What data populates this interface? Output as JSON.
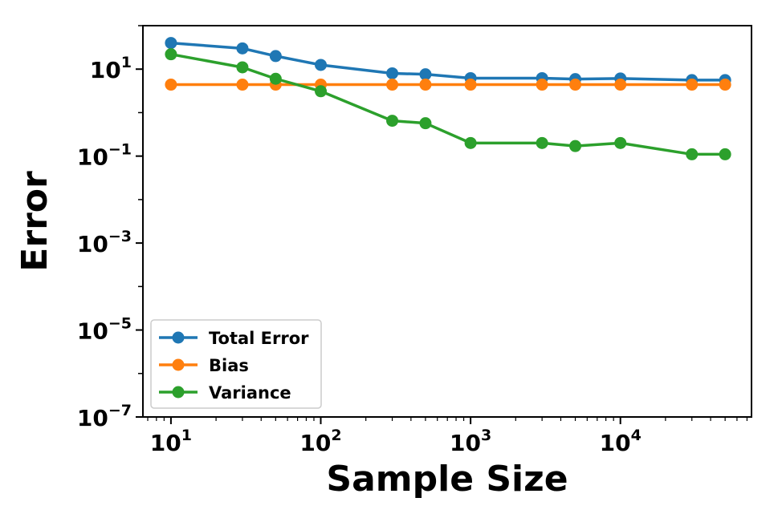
{
  "chart_data": {
    "type": "line",
    "xscale": "log",
    "yscale": "log",
    "xlabel": "Sample Size",
    "ylabel": "Error",
    "xlim": [
      6.5,
      75000
    ],
    "ylim": [
      1e-07,
      100
    ],
    "x_ticks": [
      {
        "value": 10,
        "base": "10",
        "exp": "1"
      },
      {
        "value": 100,
        "base": "10",
        "exp": "2"
      },
      {
        "value": 1000,
        "base": "10",
        "exp": "3"
      },
      {
        "value": 10000,
        "base": "10",
        "exp": "4"
      }
    ],
    "y_ticks": [
      {
        "value": 10,
        "base": "10",
        "exp": "1"
      },
      {
        "value": 0.1,
        "base": "10",
        "exp": "−1"
      },
      {
        "value": 0.001,
        "base": "10",
        "exp": "−3"
      },
      {
        "value": 1e-05,
        "base": "10",
        "exp": "−5"
      },
      {
        "value": 1e-07,
        "base": "10",
        "exp": "−7"
      }
    ],
    "grid": false,
    "legend_position": "lower-left",
    "x": [
      10,
      30,
      50,
      100,
      300,
      500,
      1000,
      3000,
      5000,
      10000,
      30000,
      50000
    ],
    "series": [
      {
        "name": "Total Error",
        "color": "#1f77b4",
        "values": [
          40,
          30,
          20,
          12.5,
          8,
          7.6,
          6.2,
          6.2,
          5.9,
          6.1,
          5.6,
          5.6
        ]
      },
      {
        "name": "Bias",
        "color": "#ff7f0e",
        "values": [
          4.4,
          4.4,
          4.4,
          4.4,
          4.4,
          4.4,
          4.4,
          4.4,
          4.4,
          4.4,
          4.4,
          4.4
        ]
      },
      {
        "name": "Variance",
        "color": "#2ca02c",
        "values": [
          22,
          11,
          6.0,
          3.1,
          0.65,
          0.57,
          0.2,
          0.2,
          0.17,
          0.2,
          0.11,
          0.11
        ]
      }
    ]
  }
}
